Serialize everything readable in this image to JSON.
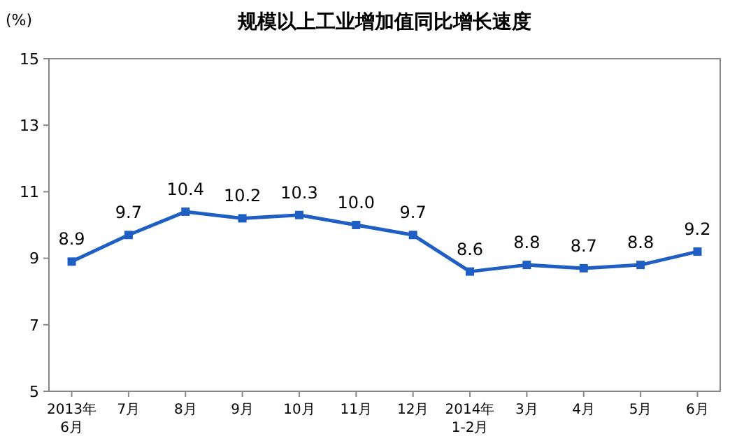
{
  "chart_data": {
    "type": "line",
    "title": "规模以上工业增加值同比增长速度",
    "ylabel": "(%)",
    "categories": [
      "2013年\n6月",
      "7月",
      "8月",
      "9月",
      "10月",
      "11月",
      "12月",
      "2014年\n1-2月",
      "3月",
      "4月",
      "5月",
      "6月"
    ],
    "series": [
      {
        "color": "#1f5fc4",
        "values": [
          8.9,
          9.7,
          10.4,
          10.2,
          10.3,
          10.0,
          9.7,
          8.6,
          8.8,
          8.7,
          8.8,
          9.2
        ],
        "value_labels": [
          "8.9",
          "9.7",
          "10.4",
          "10.2",
          "10.3",
          "10.0",
          "9.7",
          "8.6",
          "8.8",
          "8.7",
          "8.8",
          "9.2"
        ]
      }
    ],
    "ylim": [
      5,
      15
    ],
    "yticks": [
      5,
      7,
      9,
      11,
      13,
      15
    ],
    "marker": "square",
    "line_style": "solid"
  }
}
